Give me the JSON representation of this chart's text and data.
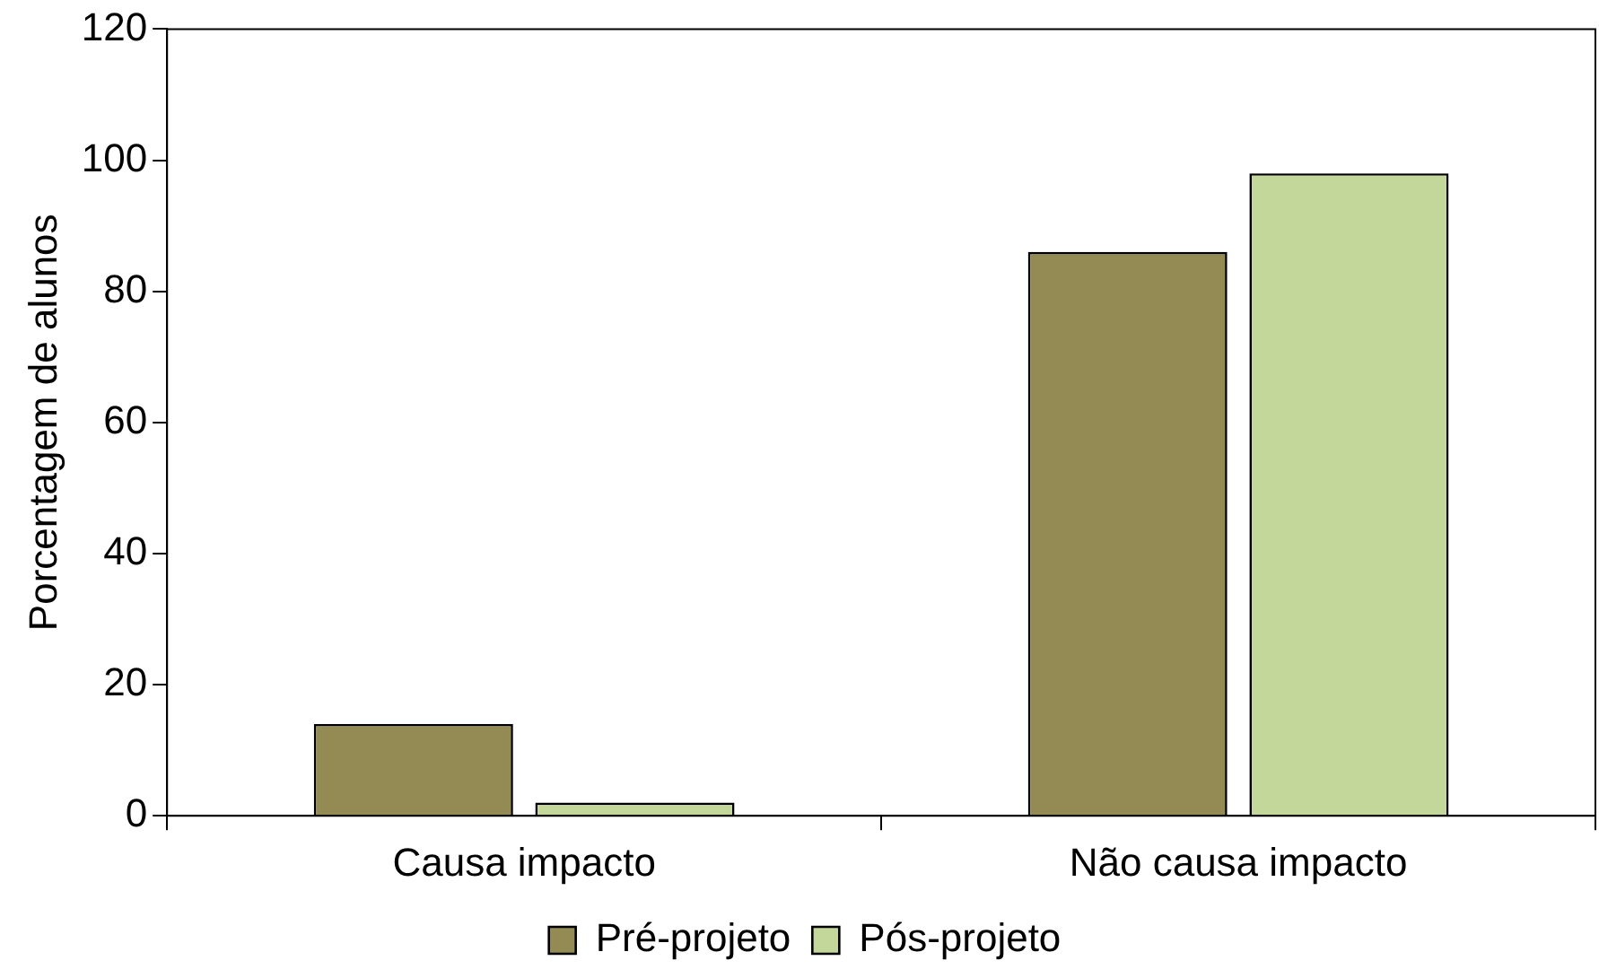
{
  "chart_data": {
    "type": "bar",
    "ylabel": "Porcentagem de alunos",
    "categories": [
      "Causa impacto",
      "Não causa impacto"
    ],
    "series": [
      {
        "name": "Pré-projeto",
        "color": "#948a54",
        "values": [
          14,
          86
        ]
      },
      {
        "name": "Pós-projeto",
        "color": "#c4d79b",
        "values": [
          2,
          98
        ]
      }
    ],
    "ylim": [
      0,
      120
    ],
    "yticks": [
      0,
      20,
      40,
      60,
      80,
      100,
      120
    ],
    "grid": false,
    "legend": "bottom"
  }
}
